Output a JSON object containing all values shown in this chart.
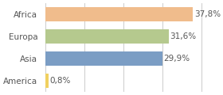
{
  "categories": [
    "America",
    "Asia",
    "Europa",
    "Africa"
  ],
  "values": [
    0.8,
    29.9,
    31.6,
    37.8
  ],
  "labels": [
    "0,8%",
    "29,9%",
    "31,6%",
    "37,8%"
  ],
  "bar_colors": [
    "#f0d060",
    "#7b9dc4",
    "#b5c98e",
    "#f0bc8c"
  ],
  "background_color": "#ffffff",
  "xlim": [
    0,
    42
  ],
  "label_fontsize": 7.5,
  "tick_fontsize": 7.5
}
